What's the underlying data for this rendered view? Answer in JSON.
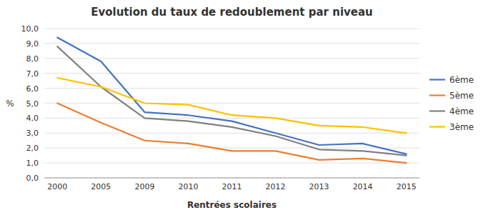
{
  "chart_data": {
    "type": "line",
    "title": "Evolution du taux de redoublement par niveau",
    "x_label": "Rentrées scolaires",
    "y_label": "%",
    "categories": [
      "2000",
      "2005",
      "2009",
      "2010",
      "2011",
      "2012",
      "2013",
      "2014",
      "2015"
    ],
    "series": [
      {
        "name": "6ème",
        "color": "#4472C4",
        "values": [
          9.4,
          7.8,
          4.4,
          4.2,
          3.8,
          3.0,
          2.2,
          2.3,
          1.6
        ]
      },
      {
        "name": "5ème",
        "color": "#ED7D31",
        "values": [
          5.0,
          3.7,
          2.5,
          2.3,
          1.8,
          1.8,
          1.2,
          1.3,
          1.0
        ]
      },
      {
        "name": "4ème",
        "color": "#808080",
        "values": [
          8.8,
          6.1,
          4.0,
          3.8,
          3.4,
          2.8,
          1.9,
          1.8,
          1.5
        ]
      },
      {
        "name": "3ème",
        "color": "#FFC000",
        "values": [
          6.7,
          6.1,
          5.0,
          4.9,
          4.2,
          4.0,
          3.5,
          3.4,
          3.0
        ]
      }
    ],
    "ylim": [
      0.0,
      10.0
    ],
    "yticks": [
      {
        "value": 0.0,
        "label": "0,0"
      },
      {
        "value": 1.0,
        "label": "1,0"
      },
      {
        "value": 2.0,
        "label": "2,0"
      },
      {
        "value": 3.0,
        "label": "3,0"
      },
      {
        "value": 4.0,
        "label": "4,0"
      },
      {
        "value": 5.0,
        "label": "5,0"
      },
      {
        "value": 6.0,
        "label": "6,0"
      },
      {
        "value": 7.0,
        "label": "7,0"
      },
      {
        "value": 8.0,
        "label": "8,0"
      },
      {
        "value": 9.0,
        "label": "9,0"
      },
      {
        "value": 10.0,
        "label": "10,0"
      }
    ],
    "grid": true,
    "legend": "right"
  }
}
